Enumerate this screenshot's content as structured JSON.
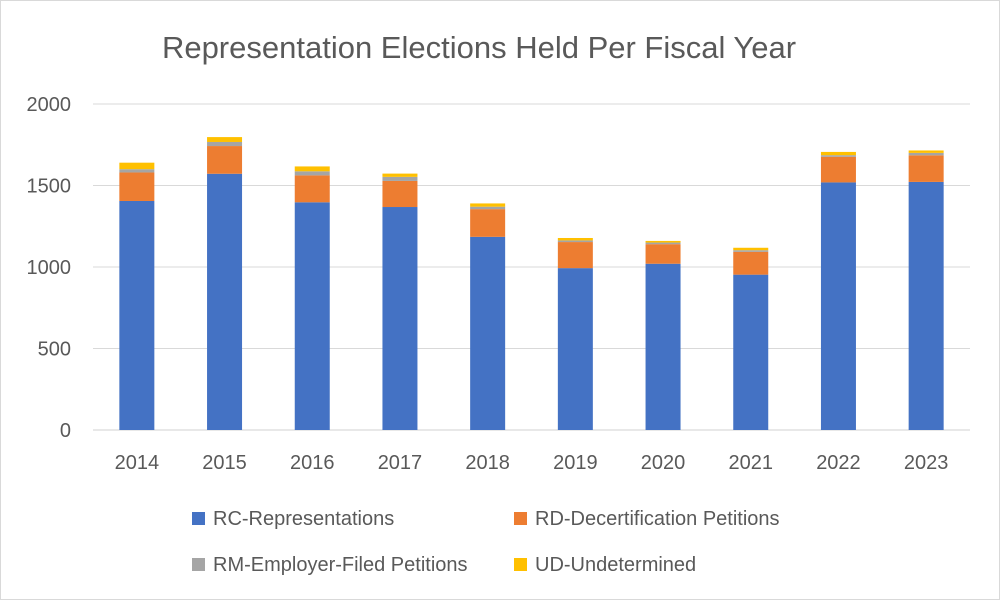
{
  "chart_data": {
    "type": "bar",
    "stacked": true,
    "title": "Representation Elections Held Per Fiscal Year",
    "xlabel": "",
    "ylabel": "",
    "ylim": [
      0,
      2000
    ],
    "yticks": [
      0,
      500,
      1000,
      1500,
      2000
    ],
    "grid": true,
    "legend_position": "bottom",
    "categories": [
      "2014",
      "2015",
      "2016",
      "2017",
      "2018",
      "2019",
      "2020",
      "2021",
      "2022",
      "2023"
    ],
    "series": [
      {
        "name": "RC-Representations",
        "color": "#4472C4",
        "values": [
          1405,
          1572,
          1397,
          1368,
          1185,
          993,
          1020,
          953,
          1519,
          1522
        ]
      },
      {
        "name": "RD-Decertification Petitions",
        "color": "#ED7D31",
        "values": [
          175,
          170,
          165,
          160,
          170,
          160,
          120,
          140,
          157,
          163
        ]
      },
      {
        "name": "RM-Employer-Filed Petitions",
        "color": "#A5A5A5",
        "values": [
          20,
          25,
          25,
          25,
          15,
          10,
          10,
          10,
          10,
          15
        ]
      },
      {
        "name": "UD-Undetermined",
        "color": "#FFC000",
        "values": [
          40,
          30,
          30,
          20,
          20,
          15,
          10,
          15,
          20,
          15
        ]
      }
    ]
  }
}
